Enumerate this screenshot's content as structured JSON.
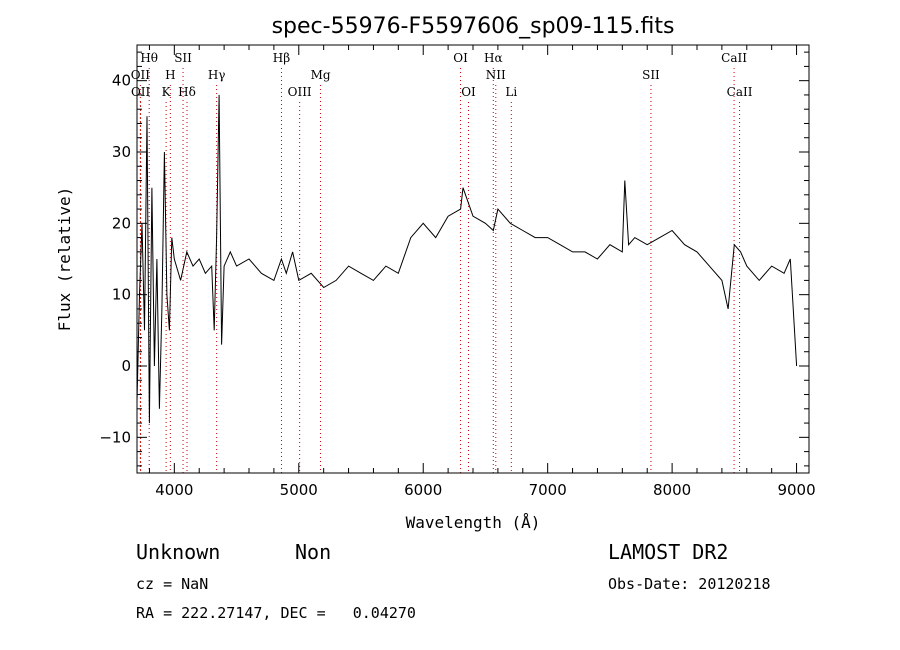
{
  "chart_data": {
    "type": "line",
    "title": "spec-55976-F5597606_sp09-115.fits",
    "xlabel": "Wavelength (Å)",
    "ylabel": "Flux (relative)",
    "xlim": [
      3700,
      9100
    ],
    "ylim": [
      -15,
      45
    ],
    "xticks": [
      4000,
      5000,
      6000,
      7000,
      8000,
      9000
    ],
    "yticks": [
      -10,
      0,
      10,
      20,
      30,
      40
    ],
    "grid": false,
    "series": [
      {
        "x": [
          3700,
          3720,
          3740,
          3760,
          3780,
          3800,
          3820,
          3840,
          3860,
          3880,
          3900,
          3920,
          3940,
          3960,
          3980,
          4000,
          4050,
          4100,
          4150,
          4200,
          4250,
          4300,
          4320,
          4340,
          4360,
          4380,
          4400,
          4450,
          4500,
          4600,
          4700,
          4800,
          4860,
          4900,
          4950,
          5000,
          5100,
          5200,
          5300,
          5400,
          5500,
          5600,
          5700,
          5800,
          5900,
          6000,
          6100,
          6200,
          6300,
          6320,
          6400,
          6500,
          6563,
          6600,
          6700,
          6800,
          6900,
          7000,
          7100,
          7200,
          7300,
          7400,
          7500,
          7600,
          7620,
          7650,
          7700,
          7800,
          7900,
          8000,
          8100,
          8200,
          8300,
          8400,
          8450,
          8500,
          8550,
          8600,
          8700,
          8800,
          8900,
          8950,
          9000
        ],
        "y": [
          -5,
          10,
          20,
          5,
          35,
          -8,
          25,
          0,
          15,
          -6,
          8,
          30,
          10,
          5,
          18,
          15,
          12,
          16,
          14,
          15,
          13,
          14,
          5,
          18,
          38,
          3,
          14,
          16,
          14,
          15,
          13,
          12,
          15,
          13,
          16,
          12,
          13,
          11,
          12,
          14,
          13,
          12,
          14,
          13,
          18,
          20,
          18,
          21,
          22,
          25,
          21,
          20,
          19,
          22,
          20,
          19,
          18,
          18,
          17,
          16,
          16,
          15,
          17,
          16,
          26,
          17,
          18,
          17,
          18,
          19,
          17,
          16,
          14,
          12,
          8,
          17,
          16,
          14,
          12,
          14,
          13,
          15,
          0
        ]
      }
    ],
    "line_markers": [
      {
        "name": "Hθ",
        "wave": 3798,
        "row": "top"
      },
      {
        "name": "OII",
        "wave": 3727,
        "row": "mid"
      },
      {
        "name": "OII",
        "wave": 3729,
        "row": "low"
      },
      {
        "name": "SII",
        "wave": 4070,
        "row": "top"
      },
      {
        "name": "H",
        "wave": 3968,
        "row": "mid"
      },
      {
        "name": "K",
        "wave": 3934,
        "row": "low"
      },
      {
        "name": "Hδ",
        "wave": 4102,
        "row": "low"
      },
      {
        "name": "Hγ",
        "wave": 4340,
        "row": "mid"
      },
      {
        "name": "Hβ",
        "wave": 4861,
        "row": "top"
      },
      {
        "name": "OIII",
        "wave": 5007,
        "row": "low"
      },
      {
        "name": "Mg",
        "wave": 5175,
        "row": "mid"
      },
      {
        "name": "OI",
        "wave": 6300,
        "row": "top"
      },
      {
        "name": "OI",
        "wave": 6364,
        "row": "low"
      },
      {
        "name": "Hα",
        "wave": 6563,
        "row": "top"
      },
      {
        "name": "NII",
        "wave": 6583,
        "row": "mid"
      },
      {
        "name": "Li",
        "wave": 6708,
        "row": "low"
      },
      {
        "name": "SII",
        "wave": 7830,
        "row": "mid"
      },
      {
        "name": "CaII",
        "wave": 8498,
        "row": "top"
      },
      {
        "name": "CaII",
        "wave": 8542,
        "row": "low"
      }
    ]
  },
  "info": {
    "class": "Unknown",
    "subclass": "Non",
    "cz": "cz = NaN",
    "radec": "RA = 222.27147, DEC =   0.04270",
    "survey": "LAMOST DR2",
    "obsdate": "Obs-Date: 20120218"
  },
  "colors": {
    "line": "#000000",
    "marker": "#cc0000"
  }
}
